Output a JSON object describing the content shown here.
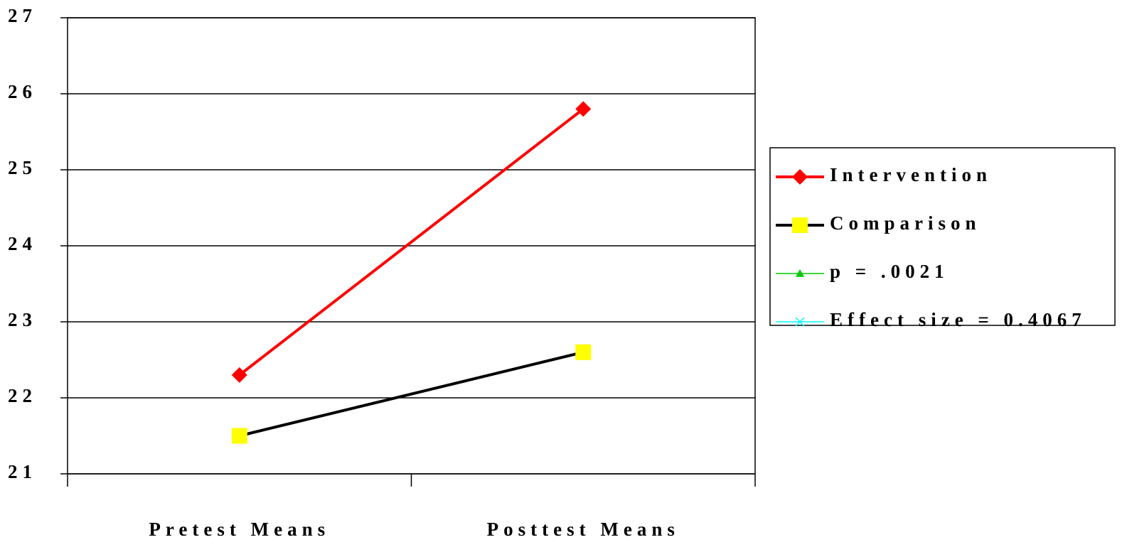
{
  "chart_data": {
    "type": "line",
    "categories": [
      "Pretest Means",
      "Posttest Means"
    ],
    "series": [
      {
        "name": "Intervention",
        "color": "#ff0000",
        "marker": "diamond",
        "values": [
          22.3,
          25.8
        ]
      },
      {
        "name": "Comparison",
        "color": "#000000",
        "marker_color": "#ffff00",
        "marker": "square",
        "values": [
          21.5,
          22.6
        ]
      },
      {
        "name": "p = .0021",
        "color": "#00cc00",
        "marker": "triangle",
        "values": [
          null,
          null
        ]
      },
      {
        "name": "Effect size = 0.4067",
        "color": "#00ffff",
        "marker": "x",
        "values": [
          null,
          null
        ]
      }
    ],
    "ylim": [
      21,
      27
    ],
    "yticks": [
      21,
      22,
      23,
      24,
      25,
      26,
      27
    ],
    "grid": true,
    "legend": "right"
  }
}
